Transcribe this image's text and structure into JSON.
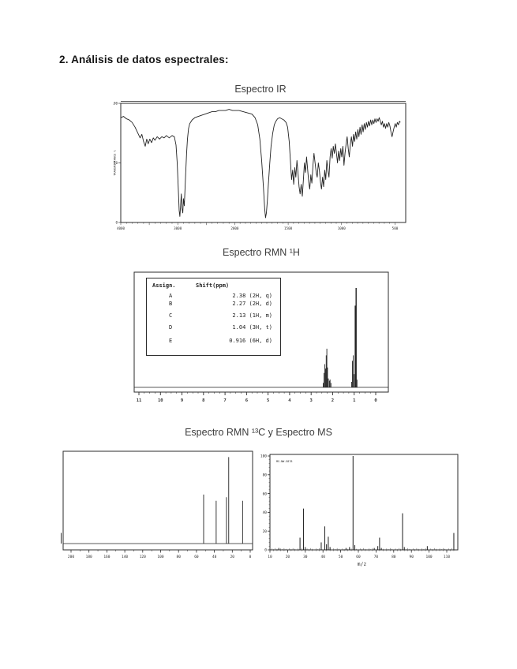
{
  "page": {
    "heading": "2. Análisis de datos espectrales:"
  },
  "sections": {
    "ir_title": "Espectro IR",
    "h1_title": "Espectro RMN ¹H",
    "c13ms_title": "Espectro RMN ¹³C y Espectro MS"
  },
  "chart_data": [
    {
      "id": "ir",
      "type": "line",
      "title": "Espectro IR",
      "ylabel": "TRANSMITTANCE %",
      "y_ticks": [
        100,
        50,
        0
      ],
      "x_ticks": [
        4000,
        3000,
        2000,
        1500,
        1000,
        500
      ],
      "x_axis_note": "wavenumber cm-1, split scale: 4000-2000 on left 40%, 2000-450 on right 60%",
      "ylim": [
        0,
        100
      ],
      "points": [
        [
          4000,
          88
        ],
        [
          3950,
          89
        ],
        [
          3900,
          87
        ],
        [
          3850,
          86
        ],
        [
          3800,
          84
        ],
        [
          3750,
          80
        ],
        [
          3700,
          75
        ],
        [
          3660,
          71
        ],
        [
          3630,
          74
        ],
        [
          3600,
          68
        ],
        [
          3570,
          64
        ],
        [
          3545,
          70
        ],
        [
          3520,
          66
        ],
        [
          3490,
          70
        ],
        [
          3460,
          67
        ],
        [
          3430,
          71
        ],
        [
          3400,
          69
        ],
        [
          3360,
          72
        ],
        [
          3320,
          70
        ],
        [
          3280,
          72
        ],
        [
          3240,
          71
        ],
        [
          3200,
          73
        ],
        [
          3150,
          71
        ],
        [
          3100,
          73
        ],
        [
          3060,
          72
        ],
        [
          3030,
          65
        ],
        [
          3010,
          50
        ],
        [
          2990,
          28
        ],
        [
          2975,
          10
        ],
        [
          2962,
          5
        ],
        [
          2950,
          14
        ],
        [
          2938,
          24
        ],
        [
          2925,
          12
        ],
        [
          2912,
          8
        ],
        [
          2900,
          20
        ],
        [
          2885,
          14
        ],
        [
          2872,
          28
        ],
        [
          2860,
          42
        ],
        [
          2845,
          58
        ],
        [
          2830,
          70
        ],
        [
          2810,
          79
        ],
        [
          2790,
          83
        ],
        [
          2750,
          86
        ],
        [
          2700,
          88
        ],
        [
          2640,
          89
        ],
        [
          2580,
          90
        ],
        [
          2520,
          91
        ],
        [
          2460,
          92
        ],
        [
          2400,
          93
        ],
        [
          2340,
          93
        ],
        [
          2280,
          94
        ],
        [
          2220,
          94
        ],
        [
          2160,
          94
        ],
        [
          2100,
          95
        ],
        [
          2040,
          94
        ],
        [
          2000,
          94
        ],
        [
          1960,
          94
        ],
        [
          1920,
          93
        ],
        [
          1880,
          92
        ],
        [
          1840,
          91
        ],
        [
          1810,
          88
        ],
        [
          1785,
          82
        ],
        [
          1765,
          70
        ],
        [
          1748,
          52
        ],
        [
          1732,
          30
        ],
        [
          1720,
          12
        ],
        [
          1712,
          4
        ],
        [
          1704,
          8
        ],
        [
          1695,
          18
        ],
        [
          1685,
          32
        ],
        [
          1672,
          50
        ],
        [
          1660,
          64
        ],
        [
          1645,
          75
        ],
        [
          1630,
          82
        ],
        [
          1615,
          85
        ],
        [
          1600,
          87
        ],
        [
          1580,
          88
        ],
        [
          1560,
          87
        ],
        [
          1540,
          86
        ],
        [
          1520,
          84
        ],
        [
          1505,
          80
        ],
        [
          1490,
          68
        ],
        [
          1478,
          50
        ],
        [
          1468,
          36
        ],
        [
          1458,
          44
        ],
        [
          1448,
          32
        ],
        [
          1438,
          46
        ],
        [
          1428,
          38
        ],
        [
          1418,
          52
        ],
        [
          1408,
          42
        ],
        [
          1398,
          30
        ],
        [
          1388,
          24
        ],
        [
          1378,
          32
        ],
        [
          1368,
          22
        ],
        [
          1358,
          35
        ],
        [
          1348,
          50
        ],
        [
          1338,
          42
        ],
        [
          1328,
          55
        ],
        [
          1318,
          45
        ],
        [
          1308,
          34
        ],
        [
          1298,
          28
        ],
        [
          1288,
          40
        ],
        [
          1278,
          33
        ],
        [
          1268,
          48
        ],
        [
          1258,
          58
        ],
        [
          1248,
          50
        ],
        [
          1238,
          42
        ],
        [
          1228,
          38
        ],
        [
          1218,
          50
        ],
        [
          1208,
          44
        ],
        [
          1198,
          34
        ],
        [
          1188,
          28
        ],
        [
          1178,
          38
        ],
        [
          1168,
          30
        ],
        [
          1158,
          44
        ],
        [
          1148,
          36
        ],
        [
          1138,
          52
        ],
        [
          1128,
          44
        ],
        [
          1118,
          38
        ],
        [
          1108,
          55
        ],
        [
          1098,
          62
        ],
        [
          1088,
          54
        ],
        [
          1078,
          64
        ],
        [
          1068,
          58
        ],
        [
          1058,
          66
        ],
        [
          1048,
          58
        ],
        [
          1038,
          50
        ],
        [
          1028,
          60
        ],
        [
          1018,
          52
        ],
        [
          1008,
          62
        ],
        [
          998,
          55
        ],
        [
          988,
          64
        ],
        [
          978,
          48
        ],
        [
          968,
          58
        ],
        [
          958,
          66
        ],
        [
          948,
          72
        ],
        [
          938,
          62
        ],
        [
          928,
          55
        ],
        [
          918,
          66
        ],
        [
          908,
          72
        ],
        [
          898,
          64
        ],
        [
          888,
          74
        ],
        [
          878,
          68
        ],
        [
          868,
          76
        ],
        [
          858,
          70
        ],
        [
          848,
          78
        ],
        [
          838,
          72
        ],
        [
          828,
          80
        ],
        [
          818,
          74
        ],
        [
          808,
          82
        ],
        [
          798,
          76
        ],
        [
          788,
          83
        ],
        [
          778,
          78
        ],
        [
          768,
          84
        ],
        [
          758,
          80
        ],
        [
          748,
          85
        ],
        [
          738,
          81
        ],
        [
          728,
          86
        ],
        [
          718,
          82
        ],
        [
          708,
          86
        ],
        [
          698,
          83
        ],
        [
          688,
          87
        ],
        [
          678,
          84
        ],
        [
          668,
          87
        ],
        [
          658,
          85
        ],
        [
          648,
          88
        ],
        [
          638,
          85
        ],
        [
          628,
          82
        ],
        [
          618,
          85
        ],
        [
          608,
          80
        ],
        [
          598,
          83
        ],
        [
          588,
          79
        ],
        [
          578,
          83
        ],
        [
          568,
          80
        ],
        [
          558,
          84
        ],
        [
          548,
          81
        ],
        [
          538,
          76
        ],
        [
          528,
          72
        ],
        [
          518,
          76
        ],
        [
          508,
          80
        ],
        [
          498,
          83
        ],
        [
          488,
          80
        ],
        [
          478,
          84
        ],
        [
          468,
          82
        ],
        [
          458,
          85
        ],
        [
          450,
          84
        ]
      ]
    },
    {
      "id": "h1nmr",
      "type": "line",
      "title": "Espectro RMN ¹H",
      "xlabel": "ppm",
      "x_ticks": [
        11,
        10,
        9,
        8,
        7,
        6,
        5,
        4,
        3,
        2,
        1,
        0
      ],
      "xlim": [
        11,
        0
      ],
      "peaks": [
        [
          2.44,
          4
        ],
        [
          2.4,
          13
        ],
        [
          2.37,
          21
        ],
        [
          2.33,
          17
        ],
        [
          2.3,
          29
        ],
        [
          2.27,
          35
        ],
        [
          2.24,
          18
        ],
        [
          2.2,
          8
        ],
        [
          2.15,
          6
        ],
        [
          2.12,
          7
        ],
        [
          2.08,
          4
        ],
        [
          1.12,
          5
        ],
        [
          1.08,
          24
        ],
        [
          1.04,
          29
        ],
        [
          1.0,
          12
        ],
        [
          0.95,
          74
        ],
        [
          0.91,
          90
        ],
        [
          0.87,
          7
        ]
      ],
      "table": {
        "headers": [
          "Assign.",
          "Shift(ppm)"
        ],
        "rows": [
          [
            "A",
            "2.38 (2H, q)"
          ],
          [
            "B",
            "2.27 (2H, d)"
          ],
          [
            "C",
            "2.13 (1H, m)"
          ],
          [
            "D",
            "1.04 (3H, t)"
          ],
          [
            "E",
            "0.916 (6H, d)"
          ]
        ]
      }
    },
    {
      "id": "c13nmr",
      "type": "line",
      "title": "Espectro RMN ¹³C",
      "x_ticks": [
        200,
        180,
        160,
        140,
        120,
        100,
        80,
        60,
        40,
        20,
        0
      ],
      "xlim": [
        210,
        0
      ],
      "peaks": [
        [
          211,
          12
        ],
        [
          52,
          55
        ],
        [
          38,
          48
        ],
        [
          26.5,
          52
        ],
        [
          24,
          97
        ],
        [
          8.5,
          48
        ]
      ]
    },
    {
      "id": "ms",
      "type": "bar",
      "title": "Espectro MS",
      "xlabel": "m/z",
      "corner_label": "MS-NW-5878",
      "y_ticks": [
        0,
        20,
        40,
        60,
        80,
        100
      ],
      "x_ticks": [
        10,
        20,
        30,
        40,
        50,
        60,
        70,
        80,
        90,
        100,
        110
      ],
      "xlim": [
        10,
        116
      ],
      "ylim": [
        0,
        100
      ],
      "peaks": [
        [
          15,
          2
        ],
        [
          27,
          13
        ],
        [
          29,
          44
        ],
        [
          30,
          3
        ],
        [
          39,
          8
        ],
        [
          41,
          25
        ],
        [
          42,
          6
        ],
        [
          43,
          14
        ],
        [
          44,
          3
        ],
        [
          53,
          2
        ],
        [
          55,
          3
        ],
        [
          57,
          100
        ],
        [
          58,
          5
        ],
        [
          69,
          2
        ],
        [
          71,
          4
        ],
        [
          72,
          13
        ],
        [
          73,
          2
        ],
        [
          85,
          39
        ],
        [
          86,
          3
        ],
        [
          99,
          4
        ],
        [
          114,
          18
        ]
      ]
    }
  ]
}
